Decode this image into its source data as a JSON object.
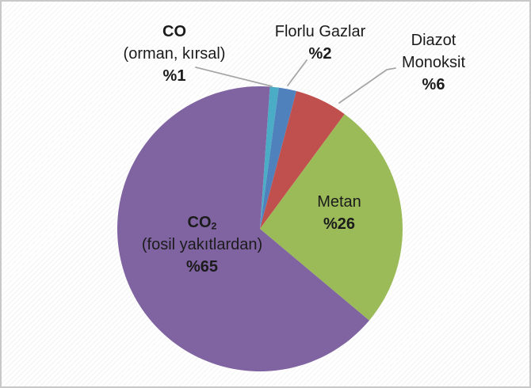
{
  "chart_data": {
    "type": "pie",
    "title": "",
    "unit": "percent",
    "legend": "none",
    "direction": "clockwise",
    "start_angle_deg": 4,
    "slices": [
      {
        "label": "CO (orman, kırsal)",
        "value": 1,
        "color": "#4BACC6",
        "display": [
          "CO",
          "(orman, kırsal)",
          "%1"
        ]
      },
      {
        "label": "Florlu Gazlar",
        "value": 2,
        "color": "#4F81BD",
        "display": [
          "Florlu Gazlar",
          "%2"
        ]
      },
      {
        "label": "Diazot Monoksit",
        "value": 6,
        "color": "#C0504D",
        "display": [
          "Diazot",
          "Monoksit",
          "%6"
        ]
      },
      {
        "label": "Metan",
        "value": 26,
        "color": "#9BBB59",
        "display": [
          "Metan",
          "%26"
        ]
      },
      {
        "label": "CO₂ (fosil yakıtlardan)",
        "value": 65,
        "color": "#8064A2",
        "display": [
          "CO₂",
          "(fosil yakıtlardan)",
          "%65"
        ],
        "display_parts": {
          "main": "CO",
          "sub": "2"
        }
      }
    ]
  },
  "styles": {
    "leader_color": "#a6a6a6",
    "text_color": "#1b1b1b",
    "background": "#ffffff",
    "frame_border": "#c8c8c8"
  }
}
